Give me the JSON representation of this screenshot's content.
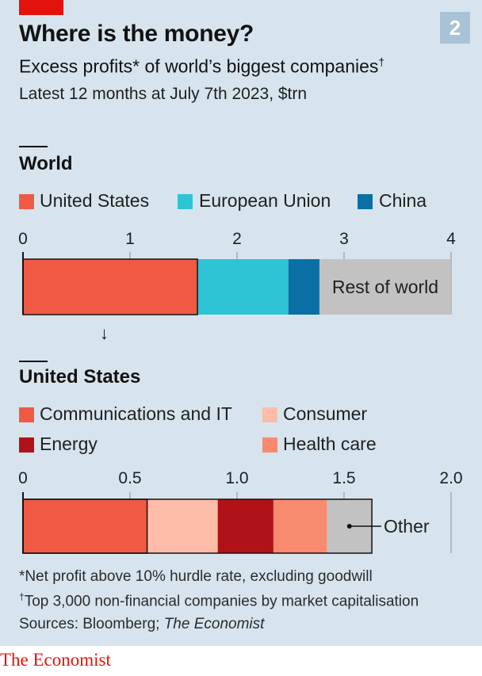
{
  "figure_number": "2",
  "title": "Where is the money?",
  "subtitle": "Excess profits* of world’s biggest companies",
  "subtitle_mark": "†",
  "subtitle2": "Latest 12 months at July 7th 2023, $trn",
  "colors": {
    "background": "#d7e4ed",
    "us": "#f05a45",
    "eu": "#2ec4d6",
    "china": "#0a6fa5",
    "rest": "#c2c2c2",
    "communications_it": "#f05a45",
    "consumer": "#fdbcaa",
    "energy": "#b01218",
    "health_care": "#f88a70",
    "other": "#c2c2c2",
    "brand_red": "#e3120b"
  },
  "chart_data": [
    {
      "type": "bar",
      "orientation": "horizontal-stacked",
      "title": "World",
      "xlim": [
        0,
        4
      ],
      "ticks": [
        "0",
        "1",
        "2",
        "3",
        "4"
      ],
      "legend": [
        "United States",
        "European Union",
        "China"
      ],
      "series": [
        {
          "name": "United States",
          "value": 1.63
        },
        {
          "name": "European Union",
          "value": 0.85
        },
        {
          "name": "China",
          "value": 0.29
        },
        {
          "name": "Rest of world",
          "value": 1.23
        }
      ],
      "segment_label": "Rest of world"
    },
    {
      "type": "bar",
      "orientation": "horizontal-stacked",
      "title": "United States",
      "xlim": [
        0,
        2
      ],
      "ticks": [
        "0",
        "0.5",
        "1.0",
        "1.5",
        "2.0"
      ],
      "legend": [
        "Communications and IT",
        "Consumer",
        "Energy",
        "Health care"
      ],
      "series": [
        {
          "name": "Communications and IT",
          "value": 0.58
        },
        {
          "name": "Consumer",
          "value": 0.33
        },
        {
          "name": "Energy",
          "value": 0.26
        },
        {
          "name": "Health care",
          "value": 0.25
        },
        {
          "name": "Other",
          "value": 0.21
        }
      ],
      "segment_label": "Other"
    }
  ],
  "footnotes": {
    "note1": "*Net profit above 10% hurdle rate, excluding goodwill",
    "note2_mark": "†",
    "note2": "Top 3,000 non-financial companies by market capitalisation",
    "sources_prefix": "Sources: Bloomberg; ",
    "sources_italic": "The Economist"
  },
  "brand": "The Economist",
  "arrow": "↓"
}
